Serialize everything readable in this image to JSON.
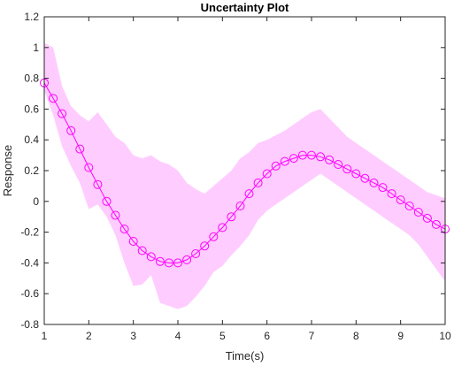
{
  "chart_data": {
    "type": "line",
    "title": "Uncertainty Plot",
    "xlabel": "Time(s)",
    "ylabel": "Response",
    "xlim": [
      1,
      10
    ],
    "ylim": [
      -0.8,
      1.2
    ],
    "x_ticks": [
      1,
      2,
      3,
      4,
      5,
      6,
      7,
      8,
      9,
      10
    ],
    "x_tick_labels": [
      "1",
      "2",
      "3",
      "4",
      "5",
      "6",
      "7",
      "8",
      "9",
      "10"
    ],
    "y_ticks": [
      -0.8,
      -0.6,
      -0.4,
      -0.2,
      0,
      0.2,
      0.4,
      0.6,
      0.8,
      1,
      1.2
    ],
    "y_tick_labels": [
      "-0.8",
      "-0.6",
      "-0.4",
      "-0.2",
      "0",
      "0.2",
      "0.4",
      "0.6",
      "0.8",
      "1",
      "1.2"
    ],
    "grid": false,
    "line_color": "#ff00ff",
    "band_color": "#ffccff",
    "series": [
      {
        "x": [
          1.0,
          1.2,
          1.4,
          1.6,
          1.8,
          2.0,
          2.2,
          2.4,
          2.6,
          2.8,
          3.0,
          3.2,
          3.4,
          3.6,
          3.8,
          4.0,
          4.2,
          4.4,
          4.6,
          4.8,
          5.0,
          5.2,
          5.4,
          5.6,
          5.8,
          6.0,
          6.2,
          6.4,
          6.6,
          6.8,
          7.0,
          7.2,
          7.4,
          7.6,
          7.8,
          8.0,
          8.2,
          8.4,
          8.6,
          8.8,
          9.0,
          9.2,
          9.4,
          9.6,
          9.8,
          10.0
        ],
        "values": [
          0.77,
          0.67,
          0.57,
          0.46,
          0.34,
          0.22,
          0.11,
          0.0,
          -0.09,
          -0.18,
          -0.26,
          -0.32,
          -0.36,
          -0.39,
          -0.4,
          -0.4,
          -0.38,
          -0.34,
          -0.29,
          -0.23,
          -0.17,
          -0.1,
          -0.03,
          0.05,
          0.12,
          0.18,
          0.23,
          0.26,
          0.28,
          0.3,
          0.3,
          0.29,
          0.27,
          0.24,
          0.21,
          0.18,
          0.15,
          0.12,
          0.09,
          0.05,
          0.01,
          -0.03,
          -0.07,
          -0.11,
          -0.15,
          -0.18
        ],
        "upper": [
          1.03,
          1.0,
          0.75,
          0.62,
          0.56,
          0.52,
          0.58,
          0.5,
          0.42,
          0.38,
          0.3,
          0.28,
          0.3,
          0.26,
          0.24,
          0.2,
          0.12,
          0.08,
          0.05,
          0.1,
          0.15,
          0.2,
          0.28,
          0.32,
          0.38,
          0.4,
          0.43,
          0.46,
          0.5,
          0.54,
          0.58,
          0.6,
          0.54,
          0.48,
          0.42,
          0.38,
          0.34,
          0.3,
          0.26,
          0.22,
          0.18,
          0.14,
          0.1,
          0.06,
          0.04,
          0.02
        ],
        "lower": [
          0.72,
          0.56,
          0.36,
          0.23,
          0.12,
          -0.05,
          -0.02,
          -0.1,
          -0.22,
          -0.4,
          -0.55,
          -0.54,
          -0.48,
          -0.66,
          -0.68,
          -0.7,
          -0.68,
          -0.62,
          -0.55,
          -0.46,
          -0.42,
          -0.35,
          -0.29,
          -0.22,
          -0.12,
          -0.06,
          -0.02,
          0.02,
          0.06,
          0.1,
          0.14,
          0.18,
          0.14,
          0.1,
          0.06,
          0.02,
          -0.02,
          -0.06,
          -0.1,
          -0.14,
          -0.18,
          -0.22,
          -0.28,
          -0.36,
          -0.44,
          -0.52
        ]
      }
    ]
  }
}
